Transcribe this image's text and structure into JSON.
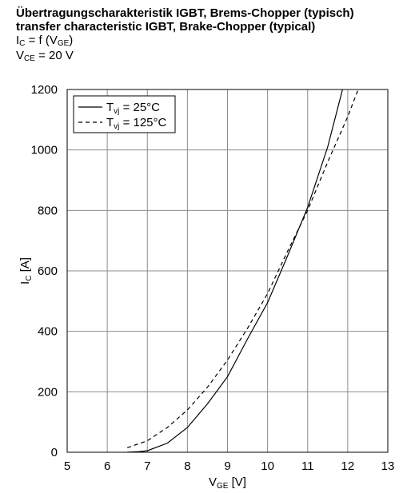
{
  "header": {
    "title_de": "Übertragungscharakteristik IGBT, Brems-Chopper (typisch)",
    "title_en": "transfer characteristic IGBT, Brake-Chopper (typical)",
    "formula": {
      "lhs_main": "I",
      "lhs_sub": "C",
      "middle": " = f (V",
      "arg_sub": "GE",
      "close": ")"
    },
    "condition": {
      "main": "V",
      "sub": "CE",
      "value": " = 20 V"
    }
  },
  "chart_data": {
    "type": "line",
    "xlabel": {
      "main": "V",
      "sub": "GE",
      "unit": " [V]"
    },
    "ylabel": {
      "main": "I",
      "sub": "C",
      "unit": " [A]"
    },
    "xlim": [
      5,
      13
    ],
    "ylim": [
      0,
      1200
    ],
    "x_ticks": [
      5,
      6,
      7,
      8,
      9,
      10,
      11,
      12,
      13
    ],
    "y_ticks": [
      0,
      200,
      400,
      600,
      800,
      1000,
      1200
    ],
    "grid": true,
    "legend_position": "top-left",
    "series": [
      {
        "name_main": "T",
        "name_sub": "vj",
        "name_rest": " = 25°C",
        "style": "solid",
        "color": "#000000",
        "x": [
          6.5,
          6.8,
          7.0,
          7.5,
          8.0,
          8.5,
          9.0,
          9.5,
          10.0,
          10.5,
          11.0,
          11.5,
          11.87
        ],
        "y": [
          0,
          2,
          5,
          30,
          82,
          160,
          250,
          375,
          495,
          650,
          810,
          1010,
          1200
        ]
      },
      {
        "name_main": "T",
        "name_sub": "vj",
        "name_rest": " = 125°C",
        "style": "dashed",
        "color": "#000000",
        "x": [
          6.5,
          7.0,
          7.5,
          8.0,
          8.5,
          9.0,
          9.5,
          10.0,
          10.5,
          11.0,
          11.5,
          12.0,
          12.26
        ],
        "y": [
          15,
          38,
          82,
          140,
          215,
          305,
          410,
          525,
          665,
          800,
          960,
          1110,
          1200
        ]
      }
    ]
  }
}
